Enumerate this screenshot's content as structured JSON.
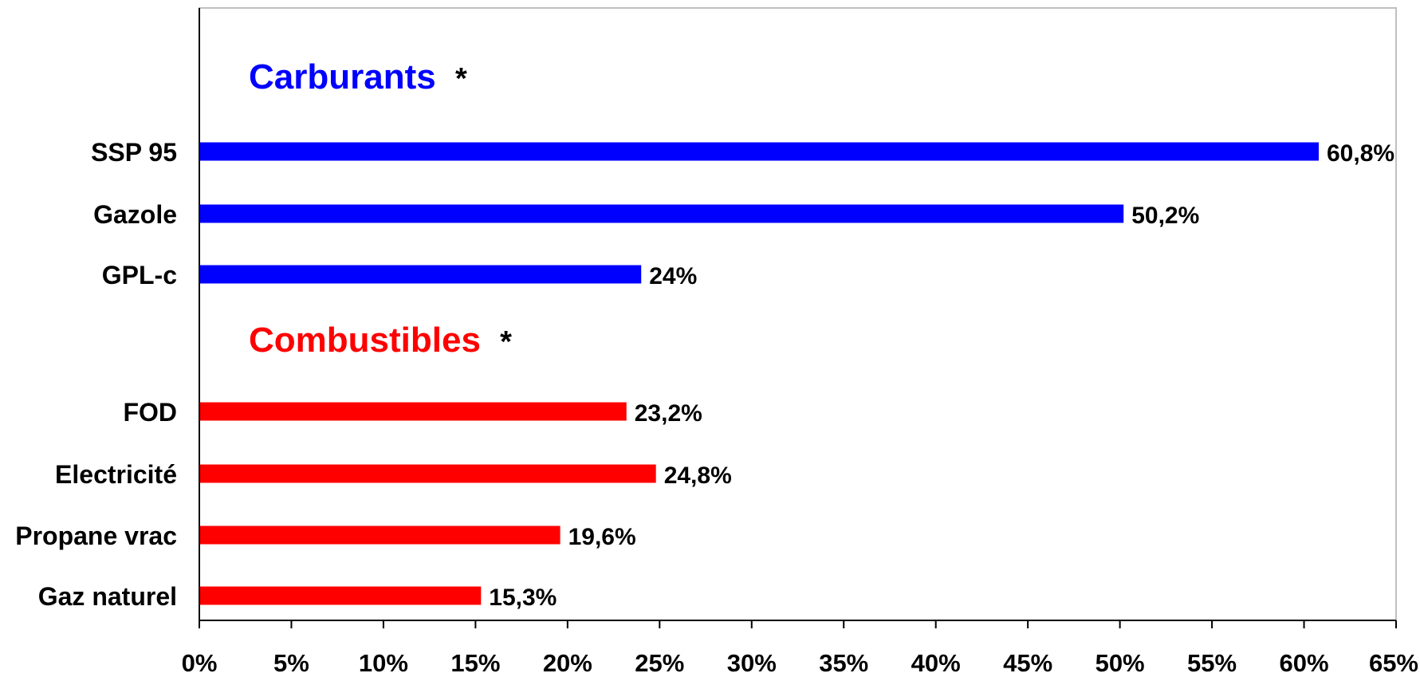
{
  "chart_data": {
    "type": "bar",
    "orientation": "horizontal",
    "title": "",
    "xlabel": "",
    "ylabel": "",
    "xlim": [
      0,
      65
    ],
    "x_ticks": [
      0,
      5,
      10,
      15,
      20,
      25,
      30,
      35,
      40,
      45,
      50,
      55,
      60,
      65
    ],
    "x_tick_labels": [
      "0%",
      "5%",
      "10%",
      "15%",
      "20%",
      "25%",
      "30%",
      "35%",
      "40%",
      "45%",
      "50%",
      "55%",
      "60%",
      "65%"
    ],
    "grid": false,
    "legend": "none",
    "groups": [
      {
        "title": "Carburants",
        "title_suffix": "*",
        "color": "#0000FF",
        "categories": [
          "SSP 95",
          "Gazole",
          "GPL-c"
        ],
        "values": [
          60.8,
          50.2,
          24
        ],
        "value_labels": [
          "60,8%",
          "50,2%",
          "24%"
        ]
      },
      {
        "title": "Combustibles",
        "title_suffix": "*",
        "color": "#FF0000",
        "categories": [
          "FOD",
          "Electricité",
          "Propane vrac",
          "Gaz naturel"
        ],
        "values": [
          23.2,
          24.8,
          19.6,
          15.3
        ],
        "value_labels": [
          "23,2%",
          "24,8%",
          "19,6%",
          "15,3%"
        ]
      }
    ]
  },
  "colors": {
    "axis": "#000000",
    "frame": "#C0C0C0",
    "background": "#FFFFFF"
  }
}
